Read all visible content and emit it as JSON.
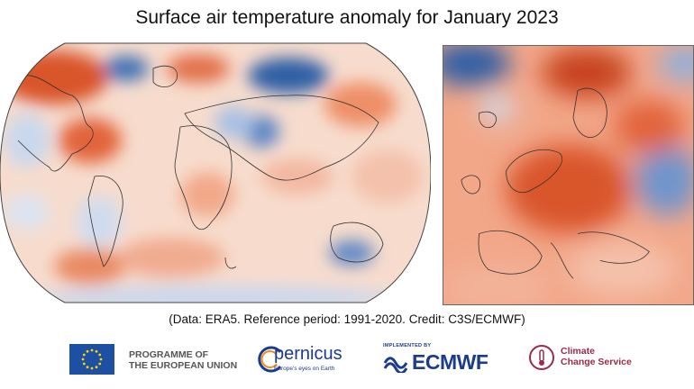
{
  "header": {
    "title": "Surface air temperature anomaly for January 2023"
  },
  "maps": {
    "world": {
      "name": "world-map",
      "projection": "Robinson"
    },
    "europe": {
      "name": "europe-map"
    }
  },
  "caption": "(Data: ERA5.  Reference period: 1991-2020.  Credit: C3S/ECMWF)",
  "logos": {
    "eu": {
      "line1": "PROGRAMME OF",
      "line2": "THE EUROPEAN UNION"
    },
    "copernicus": {
      "name_prefix": "pernicus",
      "tagline": "Europe's eyes on Earth"
    },
    "ecmwf": {
      "implemented_by": "IMPLEMENTED BY",
      "name": "ECMWF"
    },
    "ccs": {
      "line1": "Climate",
      "line2": "Change Service"
    }
  },
  "colors": {
    "warm_strong": "#c8431c",
    "warm_mid": "#ee8a63",
    "warm_light": "#f8d0bc",
    "cool_light": "#cfdcef",
    "cool_mid": "#8fb0dc",
    "cool_strong": "#2d5fa5",
    "eu_blue": "#1d4fa3",
    "ecmwf_blue": "#1b3b8c",
    "ccs_red": "#9c2a48"
  }
}
